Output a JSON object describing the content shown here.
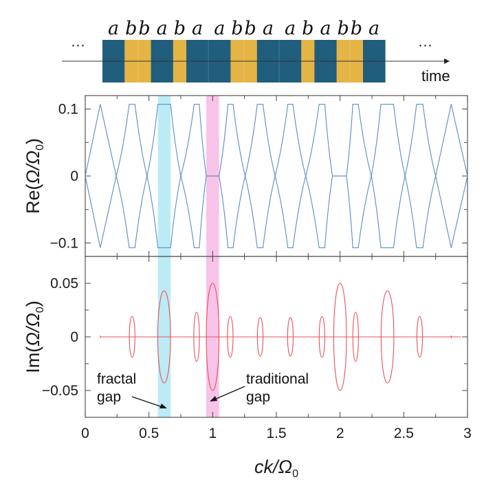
{
  "sequence": {
    "letters": [
      "a",
      "b",
      "b",
      "a",
      "b",
      "a",
      "a",
      "b",
      "b",
      "a",
      "a",
      "b",
      "a",
      "b",
      "b",
      "a"
    ],
    "ellipsis_left": "···",
    "ellipsis_right": "···",
    "time_label": "time",
    "colors": {
      "a": "#215d7c",
      "b": "#e4b445"
    }
  },
  "highlights": {
    "fractal": {
      "range": [
        0.57,
        0.67
      ],
      "color": "#bdebf5"
    },
    "traditional": {
      "range": [
        0.95,
        1.05
      ],
      "color": "#f8c3e8"
    }
  },
  "chart_data": [
    {
      "type": "line",
      "id": "re",
      "ylabel_main": "Re(",
      "ylabel_omega": "Ω/Ω",
      "ylabel_sub": "0",
      "ylabel_close": ")",
      "xlim": [
        0,
        3
      ],
      "ylim": [
        -0.12,
        0.12
      ],
      "yticks": [
        0.1,
        0,
        -0.1
      ],
      "ytick_labels": [
        "0.1",
        "0",
        "−0.1"
      ],
      "color": "#5a8ac8",
      "plateau_value": 0.107,
      "plateaus": [
        [
          0.118,
          0.118
        ],
        [
          0.345,
          0.39
        ],
        [
          0.57,
          0.67
        ],
        [
          0.855,
          0.895
        ],
        [
          1.12,
          1.16
        ],
        [
          1.35,
          1.395
        ],
        [
          1.59,
          1.63
        ],
        [
          1.835,
          1.88
        ],
        [
          2.1,
          2.143
        ],
        [
          2.32,
          2.42
        ],
        [
          2.6,
          2.65
        ],
        [
          2.872,
          2.872
        ]
      ],
      "zero_points": [
        [
          0,
          0
        ],
        [
          0.243,
          0.243
        ],
        [
          0.485,
          0.485
        ],
        [
          0.75,
          0.75
        ],
        [
          0.95,
          1.05
        ],
        [
          1.255,
          1.255
        ],
        [
          1.49,
          1.49
        ],
        [
          1.73,
          1.73
        ],
        [
          1.94,
          2.05
        ],
        [
          2.245,
          2.245
        ],
        [
          2.51,
          2.51
        ],
        [
          2.75,
          2.75
        ],
        [
          3,
          3
        ]
      ]
    },
    {
      "type": "line",
      "id": "im",
      "ylabel_main": "Im(",
      "ylabel_omega": "Ω/Ω",
      "ylabel_sub": "0",
      "ylabel_close": ")",
      "xlabel_main": "ck/Ω",
      "xlabel_sub": "0",
      "xlim": [
        0,
        3
      ],
      "ylim": [
        -0.075,
        0.075
      ],
      "xticks": [
        0,
        0.5,
        1,
        1.5,
        2,
        2.5,
        3
      ],
      "xtick_labels": [
        "0",
        "0.5",
        "1",
        "1.5",
        "2",
        "2.5",
        "3"
      ],
      "yticks": [
        0.05,
        0,
        -0.05
      ],
      "ytick_labels": [
        "0.05",
        "0",
        "−0.05"
      ],
      "color": "#e8505a",
      "ellipses": [
        {
          "k": 0.368,
          "half_width": 0.022,
          "amp": 0.019
        },
        {
          "k": 0.619,
          "half_width": 0.05,
          "amp": 0.043
        },
        {
          "k": 0.874,
          "half_width": 0.022,
          "amp": 0.023
        },
        {
          "k": 1.0,
          "half_width": 0.05,
          "amp": 0.05
        },
        {
          "k": 1.138,
          "half_width": 0.022,
          "amp": 0.019
        },
        {
          "k": 1.373,
          "half_width": 0.022,
          "amp": 0.018
        },
        {
          "k": 1.61,
          "half_width": 0.022,
          "amp": 0.018
        },
        {
          "k": 1.858,
          "half_width": 0.022,
          "amp": 0.019
        },
        {
          "k": 2.0,
          "half_width": 0.05,
          "amp": 0.05
        },
        {
          "k": 2.122,
          "half_width": 0.022,
          "amp": 0.023
        },
        {
          "k": 2.372,
          "half_width": 0.05,
          "amp": 0.043
        },
        {
          "k": 2.625,
          "half_width": 0.022,
          "amp": 0.019
        }
      ],
      "annotations": [
        {
          "text_lines": [
            "fractal",
            "gap"
          ],
          "points_to_k": 0.62,
          "points_to_y": -0.067
        },
        {
          "text_lines": [
            "traditional",
            "gap"
          ],
          "points_to_k": 0.99,
          "points_to_y": -0.061
        }
      ]
    }
  ]
}
